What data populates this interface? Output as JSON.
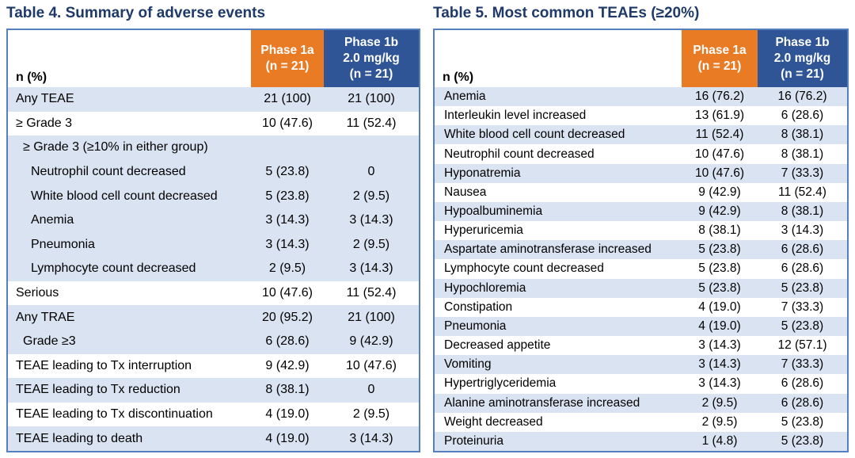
{
  "colors": {
    "title_navy": "#1F3A68",
    "header_orange": "#E97B25",
    "header_blue": "#2F5597",
    "row_shaded_blue": "#DAE3F1",
    "row_plain": "#FFFFFF",
    "table_border_blue": "#5580C0",
    "header_text": "#FFFFFF",
    "body_text": "#000000"
  },
  "tables": [
    {
      "title": "Table 4. Summary of adverse events",
      "corner_label": "n (%)",
      "columns": [
        {
          "name": "phase-1a",
          "lines": [
            "Phase 1a",
            "(n = 21)"
          ]
        },
        {
          "name": "phase-1b",
          "lines": [
            "Phase 1b",
            "2.0 mg/kg",
            "(n = 21)"
          ]
        }
      ],
      "rows": [
        {
          "label": "Any TEAE",
          "phase1a": "21 (100)",
          "phase1b": "21 (100)",
          "shaded": true,
          "indent": 0
        },
        {
          "label": "≥ Grade 3",
          "phase1a": "10 (47.6)",
          "phase1b": "11 (52.4)",
          "shaded": false,
          "indent": 0
        },
        {
          "label": "≥ Grade 3 (≥10% in either group)",
          "phase1a": "",
          "phase1b": "",
          "shaded": true,
          "indent": 1
        },
        {
          "label": "Neutrophil count decreased",
          "phase1a": "5 (23.8)",
          "phase1b": "0",
          "shaded": true,
          "indent": 2
        },
        {
          "label": "White blood cell count decreased",
          "phase1a": "5 (23.8)",
          "phase1b": "2 (9.5)",
          "shaded": true,
          "indent": 2
        },
        {
          "label": "Anemia",
          "phase1a": "3 (14.3)",
          "phase1b": "3 (14.3)",
          "shaded": true,
          "indent": 2
        },
        {
          "label": "Pneumonia",
          "phase1a": "3 (14.3)",
          "phase1b": "2 (9.5)",
          "shaded": true,
          "indent": 2
        },
        {
          "label": "Lymphocyte count decreased",
          "phase1a": "2 (9.5)",
          "phase1b": "3 (14.3)",
          "shaded": true,
          "indent": 2
        },
        {
          "label": "Serious",
          "phase1a": "10 (47.6)",
          "phase1b": "11 (52.4)",
          "shaded": false,
          "indent": 0
        },
        {
          "label": "Any TRAE",
          "phase1a": "20 (95.2)",
          "phase1b": "21 (100)",
          "shaded": true,
          "indent": 0
        },
        {
          "label": "Grade ≥3",
          "phase1a": "6 (28.6)",
          "phase1b": "9 (42.9)",
          "shaded": true,
          "indent": 1
        },
        {
          "label": "TEAE leading to Tx interruption",
          "phase1a": "9 (42.9)",
          "phase1b": "10 (47.6)",
          "shaded": false,
          "indent": 0
        },
        {
          "label": "TEAE leading to Tx reduction",
          "phase1a": "8 (38.1)",
          "phase1b": "0",
          "shaded": true,
          "indent": 0
        },
        {
          "label": "TEAE leading to Tx discontinuation",
          "phase1a": "4 (19.0)",
          "phase1b": "2 (9.5)",
          "shaded": false,
          "indent": 0
        },
        {
          "label": "TEAE leading to death",
          "phase1a": "4 (19.0)",
          "phase1b": "3 (14.3)",
          "shaded": true,
          "indent": 0
        }
      ]
    },
    {
      "title": "Table 5. Most common TEAEs (≥20%)",
      "corner_label": "n (%)",
      "columns": [
        {
          "name": "phase-1a",
          "lines": [
            "Phase 1a",
            "(n = 21)"
          ]
        },
        {
          "name": "phase-1b",
          "lines": [
            "Phase 1b",
            "2.0 mg/kg",
            "(n = 21)"
          ]
        }
      ],
      "rows": [
        {
          "label": "Anemia",
          "phase1a": "16 (76.2)",
          "phase1b": "16 (76.2)",
          "shaded": true,
          "indent": 0
        },
        {
          "label": "Interleukin level increased",
          "phase1a": "13 (61.9)",
          "phase1b": "6 (28.6)",
          "shaded": false,
          "indent": 0
        },
        {
          "label": "White blood cell count decreased",
          "phase1a": "11 (52.4)",
          "phase1b": "8 (38.1)",
          "shaded": true,
          "indent": 0
        },
        {
          "label": "Neutrophil count decreased",
          "phase1a": "10 (47.6)",
          "phase1b": "8 (38.1)",
          "shaded": false,
          "indent": 0
        },
        {
          "label": "Hyponatremia",
          "phase1a": "10 (47.6)",
          "phase1b": "7 (33.3)",
          "shaded": true,
          "indent": 0
        },
        {
          "label": "Nausea",
          "phase1a": "9 (42.9)",
          "phase1b": "11 (52.4)",
          "shaded": false,
          "indent": 0
        },
        {
          "label": "Hypoalbuminemia",
          "phase1a": "9 (42.9)",
          "phase1b": "8 (38.1)",
          "shaded": true,
          "indent": 0
        },
        {
          "label": "Hyperuricemia",
          "phase1a": "8 (38.1)",
          "phase1b": "3 (14.3)",
          "shaded": false,
          "indent": 0
        },
        {
          "label": "Aspartate aminotransferase increased",
          "phase1a": "5 (23.8)",
          "phase1b": "6 (28.6)",
          "shaded": true,
          "indent": 0
        },
        {
          "label": "Lymphocyte count decreased",
          "phase1a": "5 (23.8)",
          "phase1b": "6 (28.6)",
          "shaded": false,
          "indent": 0
        },
        {
          "label": "Hypochloremia",
          "phase1a": "5 (23.8)",
          "phase1b": "5 (23.8)",
          "shaded": true,
          "indent": 0
        },
        {
          "label": "Constipation",
          "phase1a": "4 (19.0)",
          "phase1b": "7 (33.3)",
          "shaded": false,
          "indent": 0
        },
        {
          "label": "Pneumonia",
          "phase1a": "4 (19.0)",
          "phase1b": "5 (23.8)",
          "shaded": true,
          "indent": 0
        },
        {
          "label": "Decreased appetite",
          "phase1a": "3 (14.3)",
          "phase1b": "12 (57.1)",
          "shaded": false,
          "indent": 0
        },
        {
          "label": "Vomiting",
          "phase1a": "3 (14.3)",
          "phase1b": "7 (33.3)",
          "shaded": true,
          "indent": 0
        },
        {
          "label": "Hypertriglyceridemia",
          "phase1a": "3 (14.3)",
          "phase1b": "6 (28.6)",
          "shaded": false,
          "indent": 0
        },
        {
          "label": "Alanine aminotransferase increased",
          "phase1a": "2 (9.5)",
          "phase1b": "6 (28.6)",
          "shaded": true,
          "indent": 0
        },
        {
          "label": "Weight decreased",
          "phase1a": "2 (9.5)",
          "phase1b": "5 (23.8)",
          "shaded": false,
          "indent": 0
        },
        {
          "label": "Proteinuria",
          "phase1a": "1 (4.8)",
          "phase1b": "5 (23.8)",
          "shaded": true,
          "indent": 0
        }
      ]
    }
  ]
}
